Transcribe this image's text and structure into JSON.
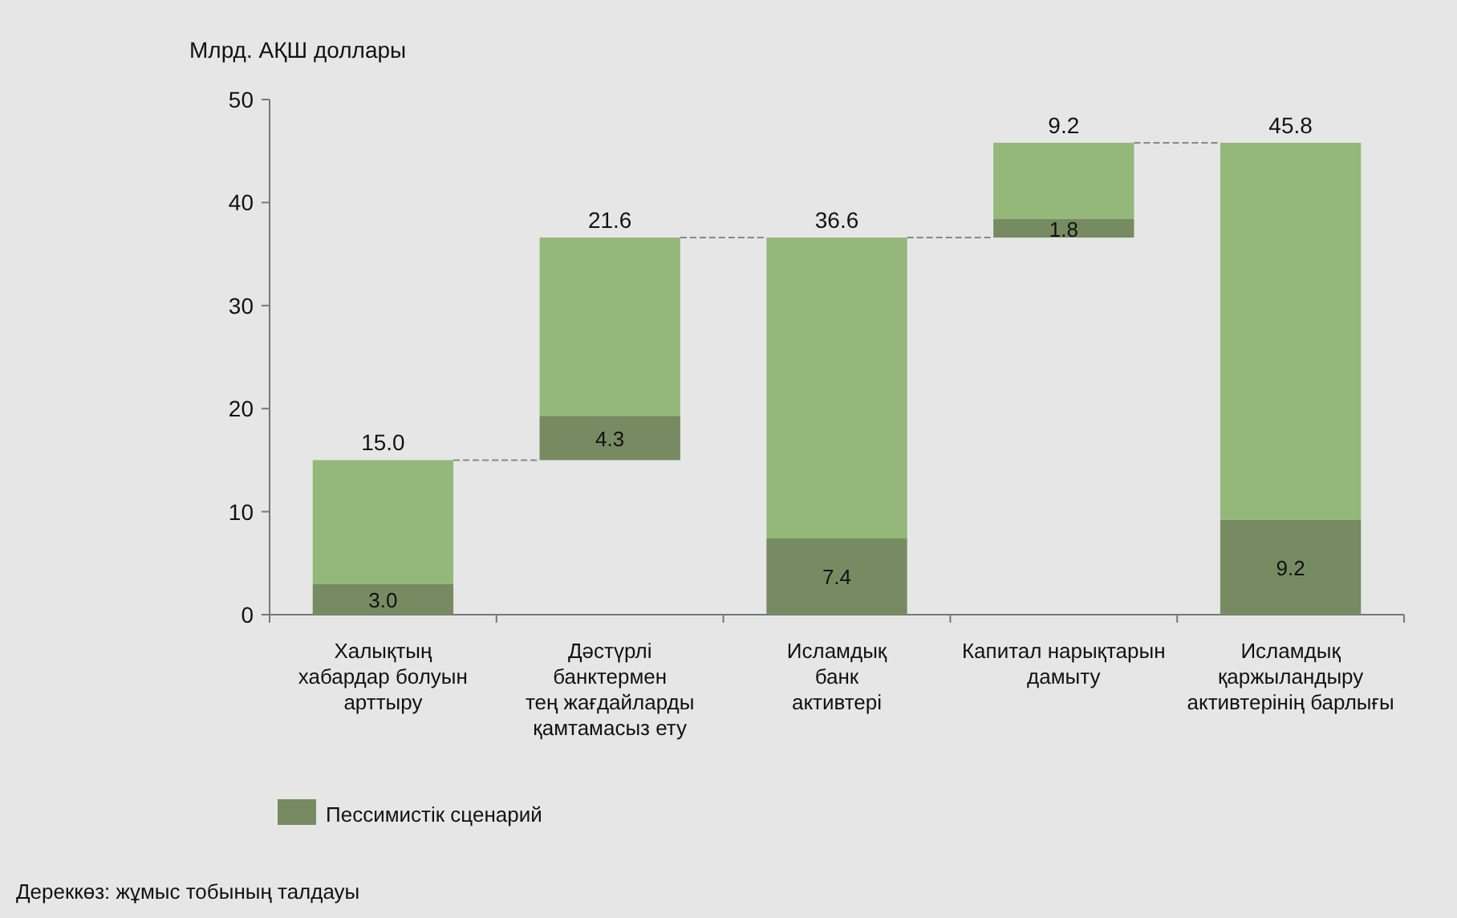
{
  "chart_data": {
    "type": "bar",
    "ylabel": "Млрд. АҚШ доллары",
    "categories": [
      "Халықтың\nхабардар болуын\nарттыру",
      "Дәстүрлі\nбанктермен\nтең жағдайларды\nқамтамасыз ету",
      "Исламдық\nбанк\nактивтері",
      "Капитал нарықтарын\nдамыту",
      "Исламдық\nқаржыландыру\nактивтерінің барлығы"
    ],
    "series": [
      {
        "name": "Пессимистік сценарий",
        "color": "#778b63",
        "base": [
          0,
          15,
          0,
          36.6,
          0
        ],
        "values": [
          3.0,
          4.3,
          7.4,
          1.8,
          9.2
        ],
        "value_labels": [
          "3.0",
          "4.3",
          "7.4",
          "1.8",
          "9.2"
        ]
      },
      {
        "color": "#93b87a",
        "base": [
          3.0,
          19.3,
          7.4,
          38.4,
          9.2
        ],
        "values": [
          12.0,
          17.3,
          29.2,
          7.4,
          36.6
        ]
      }
    ],
    "totals": [
      "15.0",
      "21.6",
      "36.6",
      "9.2",
      "45.8"
    ],
    "ylim": [
      0,
      50
    ],
    "yticks": [
      0,
      10,
      20,
      30,
      40,
      50
    ],
    "grid": false,
    "legend": "bottom left",
    "annotations": [
      "Дереккөз: жұмыс тобының талдауы"
    ]
  }
}
